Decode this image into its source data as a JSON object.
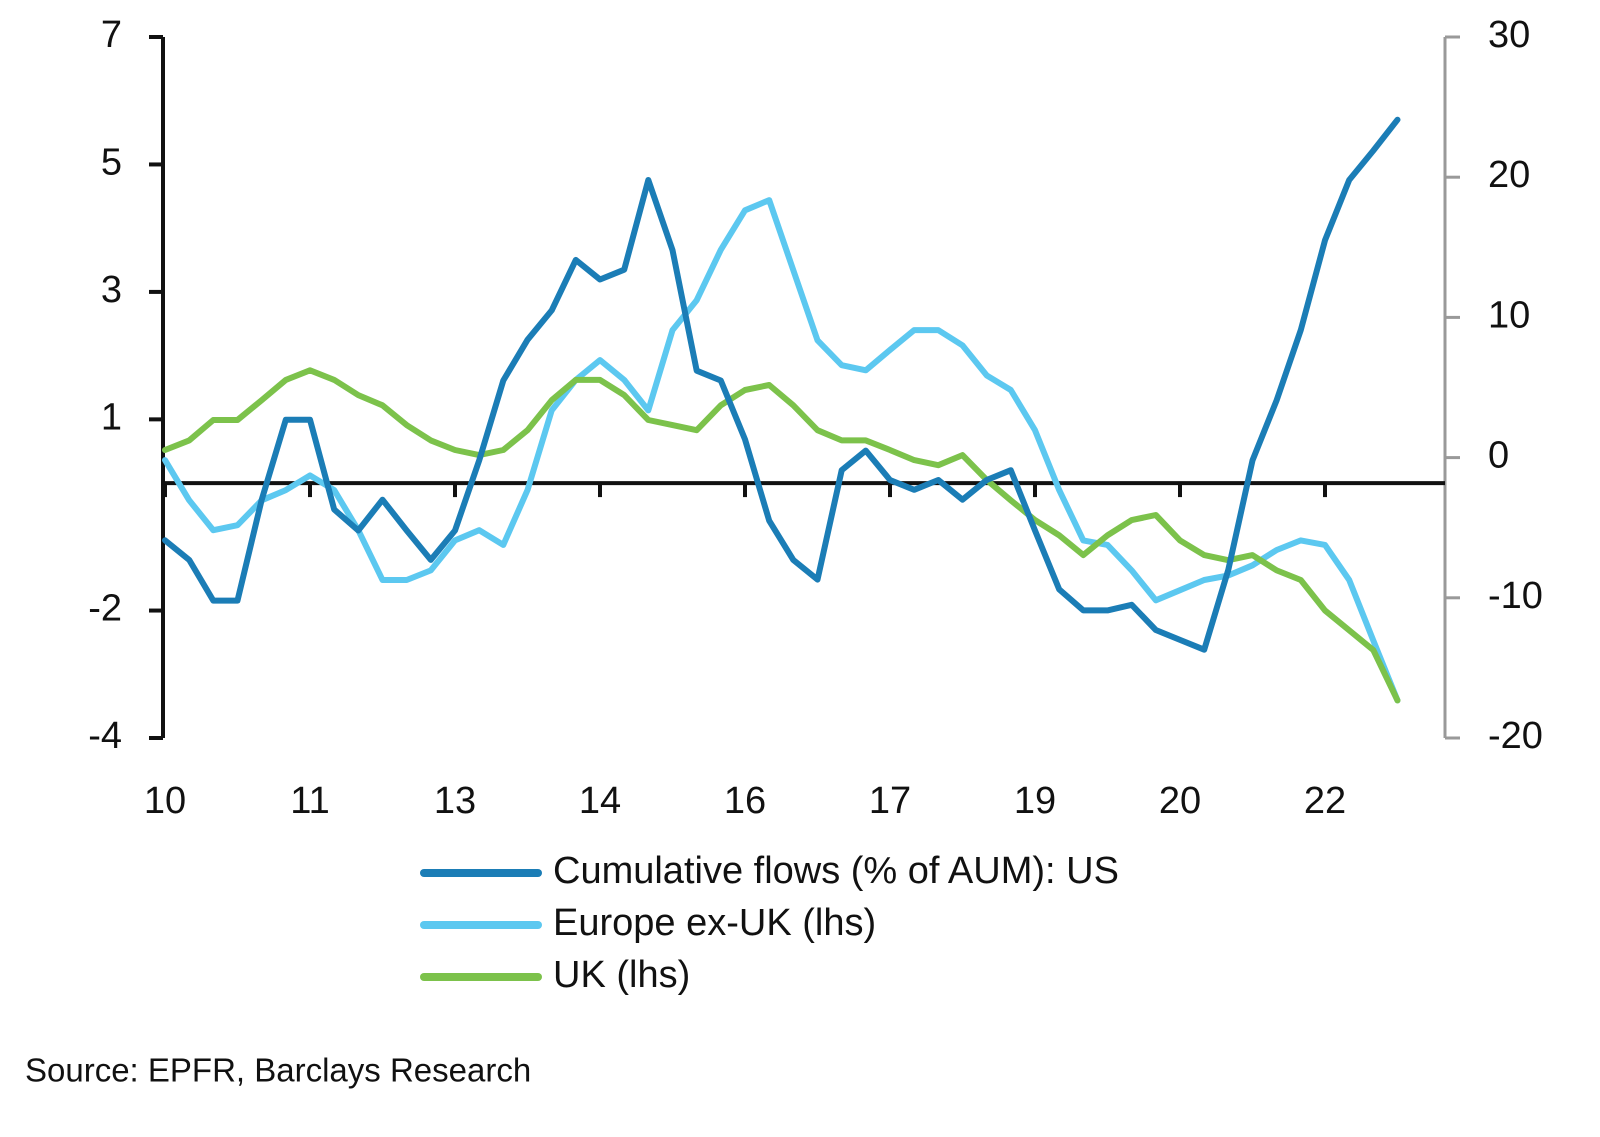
{
  "chart_data": {
    "type": "line",
    "categories": [
      "10",
      null,
      null,
      null,
      null,
      null,
      "11",
      null,
      null,
      null,
      null,
      null,
      "13",
      null,
      null,
      null,
      null,
      null,
      "14",
      null,
      null,
      null,
      null,
      null,
      "16",
      null,
      null,
      null,
      null,
      null,
      "17",
      null,
      null,
      null,
      null,
      null,
      "19",
      null,
      null,
      null,
      null,
      null,
      "20",
      null,
      null,
      null,
      null,
      null,
      "22",
      null,
      null,
      null
    ],
    "series": [
      {
        "name": "Cumulative flows (% of AUM): US",
        "color": "#1b7db6",
        "axis": "y2",
        "values": [
          -5.9,
          -7.3,
          -10.2,
          -10.2,
          -3.0,
          2.7,
          2.7,
          -3.7,
          -5.2,
          -3.0,
          -5.2,
          -7.3,
          -5.2,
          -0.2,
          5.5,
          8.4,
          10.5,
          14.1,
          12.7,
          13.4,
          19.8,
          14.8,
          6.2,
          5.5,
          1.3,
          -4.5,
          -7.3,
          -8.7,
          -0.9,
          0.5,
          -1.6,
          -2.3,
          -1.6,
          -3.0,
          -1.6,
          -0.9,
          -5.2,
          -9.4,
          -10.9,
          -10.9,
          -10.5,
          -12.3,
          -13.0,
          -13.7,
          -8.0,
          -0.2,
          4.1,
          9.1,
          15.5,
          19.8,
          21.9,
          24.1
        ]
      },
      {
        "name": "Europe ex-UK (lhs)",
        "color": "#5cc8f0",
        "values": [
          0.36,
          -0.27,
          -0.74,
          -0.66,
          -0.27,
          -0.11,
          0.12,
          -0.11,
          -0.74,
          -1.52,
          -1.52,
          -1.37,
          -0.9,
          -0.74,
          -0.97,
          -0.11,
          1.14,
          1.62,
          1.93,
          1.62,
          1.14,
          2.4,
          2.87,
          3.66,
          4.28,
          4.44,
          3.34,
          2.24,
          1.85,
          1.77,
          2.09,
          2.4,
          2.4,
          2.16,
          1.69,
          1.46,
          0.83,
          -0.11,
          -0.9,
          -0.97,
          -1.37,
          -1.84,
          -1.68,
          -1.52,
          -1.45,
          -1.29,
          -1.05,
          -0.9,
          -0.97,
          -1.52,
          -2.47,
          -3.41
        ]
      },
      {
        "name": "UK (lhs)",
        "color": "#7cc24b",
        "values": [
          0.52,
          0.67,
          0.99,
          0.99,
          1.3,
          1.62,
          1.77,
          1.62,
          1.38,
          1.22,
          0.91,
          0.67,
          0.52,
          0.44,
          0.52,
          0.83,
          1.3,
          1.62,
          1.62,
          1.38,
          0.99,
          0.91,
          0.83,
          1.22,
          1.46,
          1.54,
          1.22,
          0.83,
          0.67,
          0.67,
          0.52,
          0.36,
          0.28,
          0.44,
          0.05,
          -0.27,
          -0.58,
          -0.82,
          -1.13,
          -0.82,
          -0.58,
          -0.5,
          -0.9,
          -1.13,
          -1.21,
          -1.13,
          -1.37,
          -1.52,
          -2.0,
          -2.31,
          -2.62,
          -3.41
        ]
      }
    ],
    "ylim": [
      -4,
      7
    ],
    "yticks": [
      7,
      5,
      3,
      1,
      -2,
      -4
    ],
    "y2lim": [
      -20,
      30
    ],
    "y2ticks": [
      30,
      20,
      10,
      0,
      -10,
      -20
    ],
    "source": "Source: EPFR, Barclays Research"
  }
}
